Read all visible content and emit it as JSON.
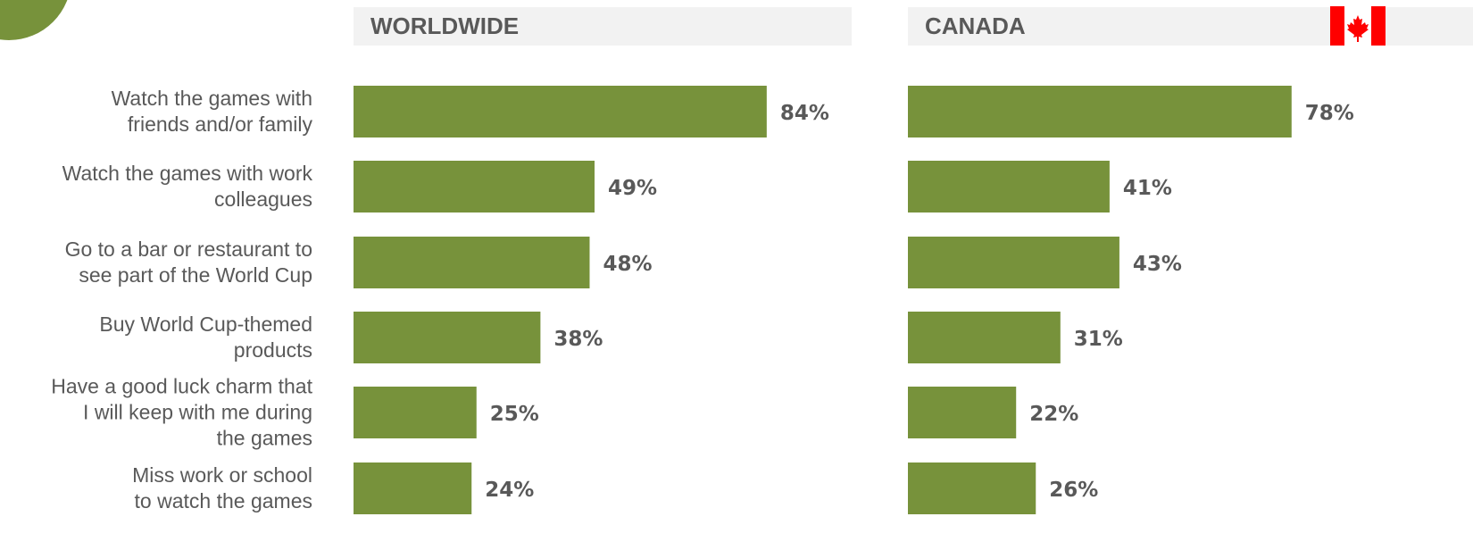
{
  "categories": [
    "Watch the games with friends and/or family",
    "Watch the games with work colleagues",
    "Go to a bar or restaurant to see part of the World Cup",
    "Buy World Cup-themed products",
    "Have a good luck charm that I will keep with me during the games",
    "Miss work or school to watch the games"
  ],
  "category_lines": [
    [
      "Watch the games with",
      "friends and/or family"
    ],
    [
      "Watch the games with work",
      "colleagues"
    ],
    [
      "Go to a bar or restaurant to",
      "see part of the World Cup"
    ],
    [
      "Buy World Cup-themed",
      "products"
    ],
    [
      "Have a good luck charm that",
      "I will keep with me during",
      "the games"
    ],
    [
      "Miss work or school",
      "to watch the games"
    ]
  ],
  "colors": {
    "bar": "#77923b",
    "header_bg": "#f2f2f2",
    "text": "#595959",
    "flag_red": "#ff0000"
  },
  "icons": {
    "corner": "green-circle-decoration",
    "flag": "canada-flag-icon"
  },
  "chart_data": [
    {
      "type": "bar",
      "orientation": "horizontal",
      "title": "WORLDWIDE",
      "categories": [
        "Watch the games with friends and/or family",
        "Watch the games with work colleagues",
        "Go to a bar or restaurant to see part of the World Cup",
        "Buy World Cup-themed products",
        "Have a good luck charm that I will keep with me during the games",
        "Miss work or school to watch the games"
      ],
      "values": [
        84,
        49,
        48,
        38,
        25,
        24
      ],
      "value_labels": [
        "84%",
        "49%",
        "48%",
        "38%",
        "25%",
        "24%"
      ],
      "unit": "%",
      "xlim": [
        0,
        100
      ],
      "grid": false,
      "legend": "none"
    },
    {
      "type": "bar",
      "orientation": "horizontal",
      "title": "CANADA",
      "categories": [
        "Watch the games with friends and/or family",
        "Watch the games with work colleagues",
        "Go to a bar or restaurant to see part of the World Cup",
        "Buy World Cup-themed products",
        "Have a good luck charm that I will keep with me during the games",
        "Miss work or school to watch the games"
      ],
      "values": [
        78,
        41,
        43,
        31,
        22,
        26
      ],
      "value_labels": [
        "78%",
        "41%",
        "43%",
        "31%",
        "22%",
        "26%"
      ],
      "unit": "%",
      "xlim": [
        0,
        100
      ],
      "grid": false,
      "legend": "none"
    }
  ]
}
